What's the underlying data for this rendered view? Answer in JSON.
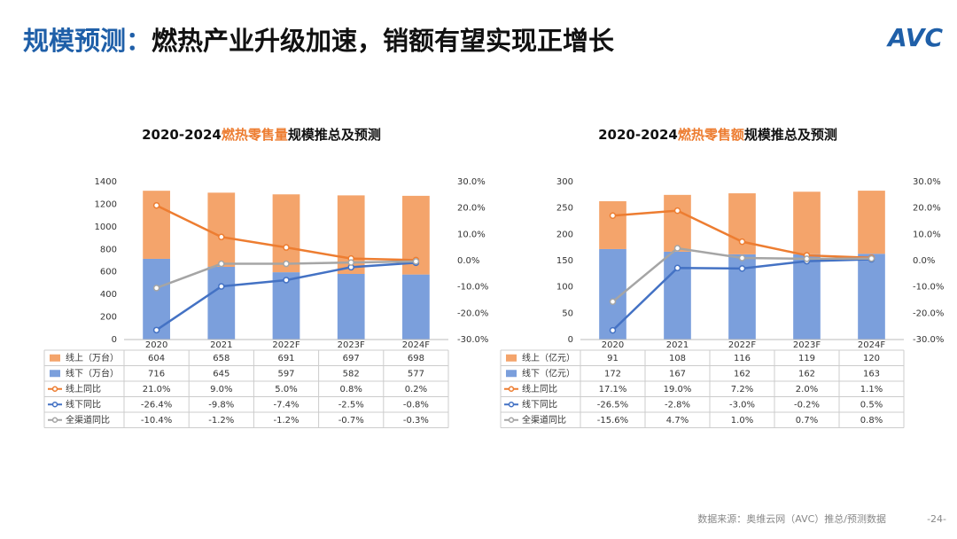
{
  "header": {
    "title": [
      "规模预测：",
      "燃热产业升级加速，销额有望实现正增长"
    ],
    "logo": "AVC"
  },
  "footer": {
    "source": "数据来源：奥维云网（AVC）推总/预测数据",
    "page": "-24-"
  },
  "chart_data": [
    {
      "type": "bar",
      "title": [
        "2020-2024",
        "燃热零售量",
        "规模推总及预测"
      ],
      "categories": [
        "2020",
        "2021",
        "2022F",
        "2023F",
        "2024F"
      ],
      "series": [
        {
          "name": "线上（万台）",
          "color": "#f4a46b",
          "values": [
            604,
            658,
            691,
            697,
            698
          ]
        },
        {
          "name": "线下（万台）",
          "color": "#7b9fdc",
          "values": [
            716,
            645,
            597,
            582,
            577
          ]
        },
        {
          "name": "线上同比",
          "color": "#ed7d31",
          "axis": "y2",
          "values": [
            21.0,
            9.0,
            5.0,
            0.8,
            0.2
          ],
          "value_labels": [
            "21.0%",
            "9.0%",
            "5.0%",
            "0.8%",
            "0.2%"
          ]
        },
        {
          "name": "线下同比",
          "color": "#4472c4",
          "axis": "y2",
          "values": [
            -26.4,
            -9.8,
            -7.4,
            -2.5,
            -0.8
          ],
          "value_labels": [
            "-26.4%",
            "-9.8%",
            "-7.4%",
            "-2.5%",
            "-0.8%"
          ]
        },
        {
          "name": "全渠道同比",
          "color": "#a5a5a5",
          "axis": "y2",
          "values": [
            -10.4,
            -1.2,
            -1.2,
            -0.7,
            -0.3
          ],
          "value_labels": [
            "-10.4%",
            "-1.2%",
            "-1.2%",
            "-0.7%",
            "-0.3%"
          ]
        }
      ],
      "ylim": [
        0,
        1400
      ],
      "yticks": [
        0,
        200,
        400,
        600,
        800,
        1000,
        1200,
        1400
      ],
      "y2lim": [
        -30,
        30
      ],
      "y2ticks": [
        {
          "value": -30,
          "label": "-30.0%"
        },
        {
          "value": -20,
          "label": "-20.0%"
        },
        {
          "value": -10,
          "label": "-10.0%"
        },
        {
          "value": 0,
          "label": "0.0%"
        },
        {
          "value": 10,
          "label": "10.0%"
        },
        {
          "value": 20,
          "label": "20.0%"
        },
        {
          "value": 30,
          "label": "30.0%"
        }
      ]
    },
    {
      "type": "bar",
      "title": [
        "2020-2024",
        "燃热零售额",
        "规模推总及预测"
      ],
      "categories": [
        "2020",
        "2021",
        "2022F",
        "2023F",
        "2024F"
      ],
      "series": [
        {
          "name": "线上（亿元）",
          "color": "#f4a46b",
          "values": [
            91,
            108,
            116,
            119,
            120
          ]
        },
        {
          "name": "线下（亿元）",
          "color": "#7b9fdc",
          "values": [
            172,
            167,
            162,
            162,
            163
          ]
        },
        {
          "name": "线上同比",
          "color": "#ed7d31",
          "axis": "y2",
          "values": [
            17.1,
            19.0,
            7.2,
            2.0,
            1.1
          ],
          "value_labels": [
            "17.1%",
            "19.0%",
            "7.2%",
            "2.0%",
            "1.1%"
          ]
        },
        {
          "name": "线下同比",
          "color": "#4472c4",
          "axis": "y2",
          "values": [
            -26.5,
            -2.8,
            -3.0,
            -0.2,
            0.5
          ],
          "value_labels": [
            "-26.5%",
            "-2.8%",
            "-3.0%",
            "-0.2%",
            "0.5%"
          ]
        },
        {
          "name": "全渠道同比",
          "color": "#a5a5a5",
          "axis": "y2",
          "values": [
            -15.6,
            4.7,
            1.0,
            0.7,
            0.8
          ],
          "value_labels": [
            "-15.6%",
            "4.7%",
            "1.0%",
            "0.7%",
            "0.8%"
          ]
        }
      ],
      "ylim": [
        0,
        300
      ],
      "yticks": [
        0,
        50,
        100,
        150,
        200,
        250,
        300
      ],
      "y2lim": [
        -30,
        30
      ],
      "y2ticks": [
        {
          "value": -30,
          "label": "-30.0%"
        },
        {
          "value": -20,
          "label": "-20.0%"
        },
        {
          "value": -10,
          "label": "-10.0%"
        },
        {
          "value": 0,
          "label": "0.0%"
        },
        {
          "value": 10,
          "label": "10.0%"
        },
        {
          "value": 20,
          "label": "20.0%"
        },
        {
          "value": 30,
          "label": "30.0%"
        }
      ]
    }
  ]
}
